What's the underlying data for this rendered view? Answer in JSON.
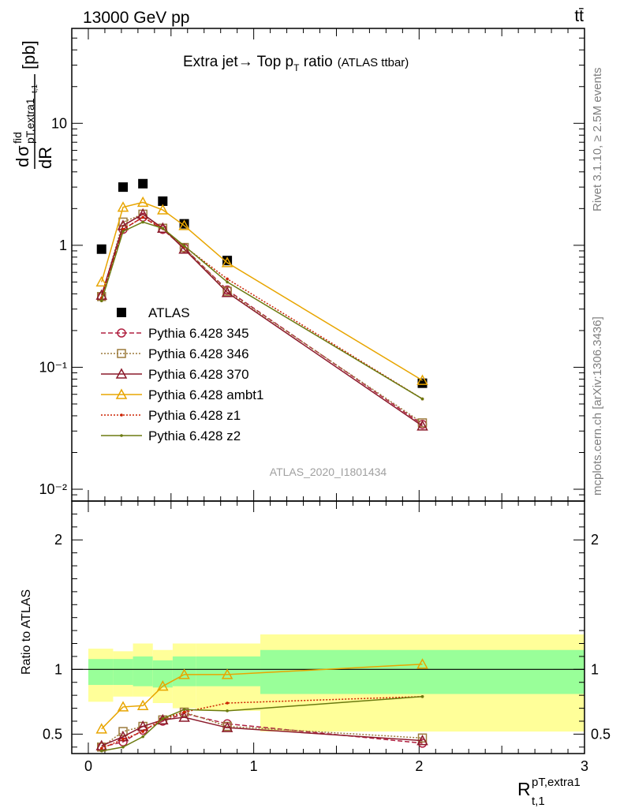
{
  "header": {
    "energy_label": "13000 GeV pp",
    "process_label": "tt̄"
  },
  "side_labels": {
    "rivet": "Rivet 3.1.10, ≥ 2.5M events",
    "mcplots": "mcplots.cern.ch [arXiv:1306.3436]"
  },
  "chart_data": [
    {
      "type": "line",
      "panel": "main",
      "title": "Extra jet→ Top p_T ratio (ATLAS ttbar)",
      "title_main": "Extra jet",
      "title_arrow": "→ Top p",
      "title_sub": "T",
      "title_ratio": " ratio",
      "title_small": "(ATLAS ttbar)",
      "ylabel": "dσ^fid / dR^{pT,extra1}_{t,1} [pb]",
      "ylabel_parts": {
        "d": "d",
        "sigma": "σ",
        "fid": "fid",
        "sub": "pT,extra1",
        "subsub": "t,1",
        "dR": "dR",
        "unit": "[pb]"
      },
      "yscale": "log",
      "ylim": [
        0.008,
        60
      ],
      "yticks": [
        0.01,
        0.1,
        1,
        10
      ],
      "ytick_labels": [
        "10⁻²",
        "10⁻¹",
        "1",
        "10"
      ],
      "xlim": [
        -0.1,
        3.0
      ],
      "watermark": "ATLAS_2020_I1801434",
      "legend_position": "center-left",
      "x": [
        0.08,
        0.21,
        0.33,
        0.45,
        0.58,
        0.84,
        2.02
      ],
      "series": [
        {
          "name": "ATLAS",
          "color": "#000000",
          "marker": "square",
          "style": "data",
          "values": [
            0.93,
            3.0,
            3.2,
            2.3,
            1.5,
            0.75,
            0.074
          ]
        },
        {
          "name": "Pythia 6.428 345",
          "color": "#b02040",
          "marker": "circle",
          "style": "dashed",
          "values": [
            0.38,
            1.35,
            1.7,
            1.35,
            0.95,
            0.43,
            0.034
          ]
        },
        {
          "name": "Pythia 6.428 346",
          "color": "#9c7a3c",
          "marker": "square-open",
          "style": "dotted",
          "values": [
            0.38,
            1.55,
            1.8,
            1.38,
            0.96,
            0.42,
            0.035
          ]
        },
        {
          "name": "Pythia 6.428 370",
          "color": "#8b1a2b",
          "marker": "triangle-open",
          "style": "solid",
          "values": [
            0.39,
            1.45,
            1.8,
            1.38,
            0.93,
            0.41,
            0.033
          ]
        },
        {
          "name": "Pythia 6.428 ambt1",
          "color": "#e8a500",
          "marker": "triangle-open",
          "style": "solid",
          "values": [
            0.5,
            2.05,
            2.25,
            1.95,
            1.45,
            0.72,
            0.078
          ]
        },
        {
          "name": "Pythia 6.428 z1",
          "color": "#cc2200",
          "marker": "dot",
          "style": "dotted",
          "values": [
            0.37,
            1.35,
            1.7,
            1.38,
            0.98,
            0.53,
            0.055
          ]
        },
        {
          "name": "Pythia 6.428 z2",
          "color": "#6b7a10",
          "marker": "dot",
          "style": "solid",
          "values": [
            0.35,
            1.3,
            1.55,
            1.38,
            0.99,
            0.5,
            0.055
          ]
        }
      ]
    },
    {
      "type": "line",
      "panel": "ratio",
      "ylabel": "Ratio to ATLAS",
      "xlabel": "R^{pT,extra1}_{t,1}",
      "xlabel_parts": {
        "R": "R",
        "sup": "pT,extra1",
        "sub": "t,1"
      },
      "ylim": [
        0.35,
        2.3
      ],
      "yticks": [
        0.5,
        1,
        2
      ],
      "ytick_labels": [
        "0.5",
        "1",
        "2"
      ],
      "xlim": [
        -0.1,
        3.0
      ],
      "xticks": [
        0,
        1,
        2,
        3
      ],
      "xtick_labels": [
        "0",
        "1",
        "2",
        "3"
      ],
      "bands": {
        "edges": [
          0.0,
          0.15,
          0.27,
          0.39,
          0.51,
          0.65,
          1.04,
          3.0
        ],
        "green_lo": [
          0.88,
          0.88,
          0.87,
          0.86,
          0.87,
          0.87,
          0.81
        ],
        "green_hi": [
          1.08,
          1.08,
          1.1,
          1.07,
          1.1,
          1.1,
          1.15
        ],
        "yellow_lo": [
          0.75,
          0.79,
          0.79,
          0.74,
          0.7,
          0.68,
          0.52
        ],
        "yellow_hi": [
          1.16,
          1.14,
          1.2,
          1.15,
          1.2,
          1.2,
          1.27
        ]
      },
      "series": [
        {
          "name": "Pythia 6.428 345",
          "values": [
            0.4,
            0.44,
            0.53,
            0.6,
            0.66,
            0.58,
            0.43
          ]
        },
        {
          "name": "Pythia 6.428 346",
          "values": [
            0.4,
            0.52,
            0.56,
            0.61,
            0.67,
            0.56,
            0.47
          ]
        },
        {
          "name": "Pythia 6.428 370",
          "values": [
            0.41,
            0.48,
            0.56,
            0.61,
            0.63,
            0.55,
            0.45
          ]
        },
        {
          "name": "Pythia 6.428 ambt1",
          "values": [
            0.54,
            0.71,
            0.72,
            0.87,
            0.96,
            0.96,
            1.04
          ]
        },
        {
          "name": "Pythia 6.428 z1",
          "values": [
            0.39,
            0.46,
            0.52,
            0.62,
            0.67,
            0.74,
            0.79
          ]
        },
        {
          "name": "Pythia 6.428 z2",
          "values": [
            0.37,
            0.4,
            0.48,
            0.62,
            0.69,
            0.68,
            0.79
          ]
        }
      ]
    }
  ]
}
